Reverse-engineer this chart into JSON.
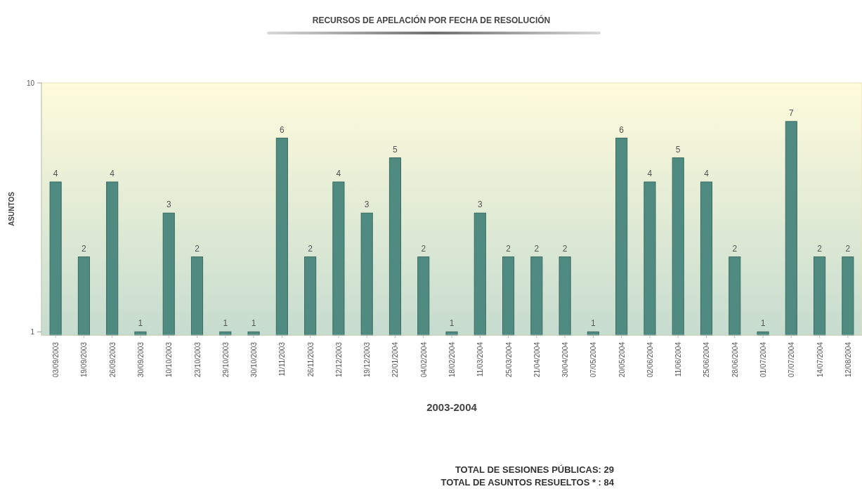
{
  "chart_data": {
    "type": "bar",
    "title": "RECURSOS DE APELACIÓN POR FECHA DE RESOLUCIÓN",
    "xlabel": "2003-2004",
    "ylabel": "ASUNTOS",
    "categories": [
      "03/09/2003",
      "19/09/2003",
      "26/09/2003",
      "30/09/2003",
      "10/10/2003",
      "23/10/2003",
      "29/10/2003",
      "30/10/2003",
      "11/11/2003",
      "26/11/2003",
      "12/12/2003",
      "19/12/2003",
      "22/01/2004",
      "04/02/2004",
      "18/02/2004",
      "11/03/2004",
      "25/03/2004",
      "21/04/2004",
      "30/04/2004",
      "07/05/2004",
      "20/05/2004",
      "02/06/2004",
      "11/06/2004",
      "25/06/2004",
      "28/06/2004",
      "01/07/2004",
      "07/07/2004",
      "14/07/2004",
      "12/08/2004"
    ],
    "values": [
      4,
      2,
      4,
      1,
      3,
      2,
      1,
      1,
      6,
      2,
      4,
      3,
      5,
      2,
      1,
      3,
      2,
      2,
      2,
      1,
      6,
      4,
      5,
      4,
      2,
      1,
      7,
      2,
      2
    ],
    "color": "#4f8b80",
    "ylim": [
      0.97,
      10
    ],
    "yticks": [
      1,
      10
    ],
    "log": true,
    "data_labels": true,
    "annotations": [
      "TOTAL DE SESIONES PÚBLICAS: 29",
      "TOTAL DE ASUNTOS RESUELTOS * : 84"
    ]
  }
}
